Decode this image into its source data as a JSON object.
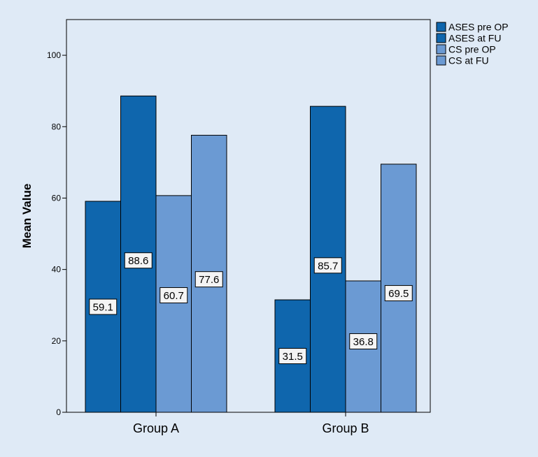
{
  "chart_data": {
    "type": "bar",
    "ylabel": "Mean Value",
    "xlabel": "",
    "ylim": [
      0,
      110
    ],
    "yticks": [
      0,
      20,
      40,
      60,
      80,
      100
    ],
    "categories": [
      "Group A",
      "Group B"
    ],
    "series": [
      {
        "name": "ASES pre OP",
        "values": [
          59.1,
          31.5
        ],
        "color": "#0f66ad"
      },
      {
        "name": "ASES at FU",
        "values": [
          88.6,
          85.7
        ],
        "color": "#0f66ad"
      },
      {
        "name": "CS pre OP",
        "values": [
          60.7,
          36.8
        ],
        "color": "#6b9ad3"
      },
      {
        "name": "CS at FU",
        "values": [
          77.6,
          69.5
        ],
        "color": "#6b9ad3"
      }
    ],
    "data_labels": [
      [
        "59.1",
        "31.5"
      ],
      [
        "88.6",
        "85.7"
      ],
      [
        "60.7",
        "36.8"
      ],
      [
        "77.6",
        "69.5"
      ]
    ],
    "grid": false,
    "legend_position": "top-right",
    "background": "#dfeaf6",
    "plot_background": "#dfeaf6",
    "bar_outline": "#000000"
  }
}
